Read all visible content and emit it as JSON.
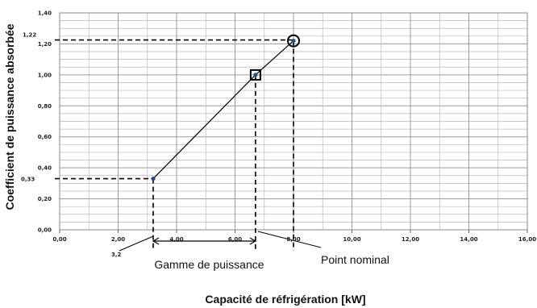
{
  "chart_data": {
    "type": "line",
    "xlabel": "Capacité de réfrigération [kW]",
    "ylabel": "Coefficient de puissance absorbée",
    "xlim": [
      0,
      16
    ],
    "ylim": [
      0,
      1.4
    ],
    "grid": true,
    "x_major_ticks": [
      "0,00",
      "2,00",
      "4,00",
      "6,00",
      "8,00",
      "10,00",
      "12,00",
      "14,00",
      "16,00"
    ],
    "y_major_ticks": [
      "0,00",
      "0,20",
      "0,40",
      "0,60",
      "0,80",
      "1,00",
      "1,20",
      "1,40"
    ],
    "series": [
      {
        "x": [
          3.2,
          6.7,
          8.0
        ],
        "y": [
          0.33,
          1.0,
          1.22
        ],
        "color": "#1f4e8c"
      }
    ],
    "annotations": {
      "x_min_label": "3,2",
      "y_min_label": "0,33",
      "y_max_label": "1,22",
      "range_label": "Gamme de puissance",
      "nominal_label": "Point nominal"
    }
  }
}
